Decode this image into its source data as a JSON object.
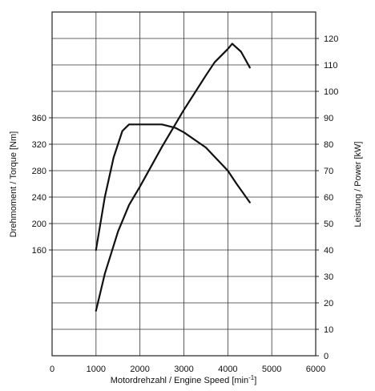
{
  "chart_data": {
    "type": "line",
    "xlabel": "Motordrehzahl / Engine Speed [min",
    "xlabel_sup": "-1",
    "xlabel_end": "]",
    "ylabel_left": "Drehmoment / Torque [Nm]",
    "ylabel_right": "Leistung / Power [kW]",
    "xlim": [
      0,
      6000
    ],
    "x_ticks": [
      "0",
      "1000",
      "2000",
      "3000",
      "4000",
      "5000",
      "6000"
    ],
    "y_left_ticks": [
      "160",
      "200",
      "240",
      "280",
      "320",
      "360"
    ],
    "y_right_ticks": [
      "0",
      "10",
      "20",
      "30",
      "40",
      "50",
      "60",
      "70",
      "80",
      "90",
      "100",
      "110",
      "120"
    ],
    "grid": true,
    "series": [
      {
        "axis": "left",
        "x": [
          1000,
          1200,
          1400,
          1600,
          1750,
          2000,
          2500,
          2800,
          3000,
          3500,
          4000,
          4200,
          4500
        ],
        "values": [
          160,
          240,
          300,
          340,
          350,
          350,
          350,
          345,
          338,
          315,
          280,
          260,
          232
        ]
      },
      {
        "axis": "right",
        "x": [
          1000,
          1200,
          1500,
          1750,
          2000,
          2500,
          3000,
          3500,
          3700,
          4000,
          4100,
          4300,
          4500
        ],
        "values": [
          17,
          31,
          47,
          57,
          64,
          79,
          93,
          106,
          111,
          116,
          118,
          115,
          109
        ]
      }
    ]
  }
}
